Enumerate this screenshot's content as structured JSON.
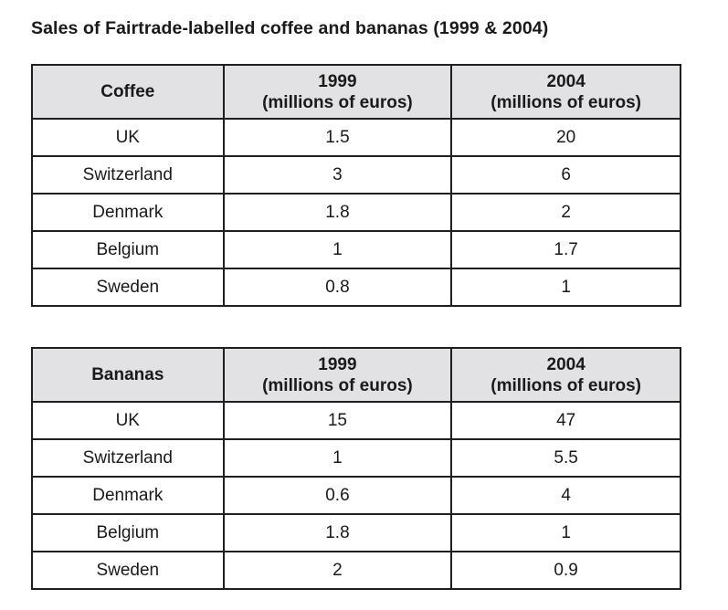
{
  "chart_data": [
    {
      "type": "table",
      "title": "Sales of Fairtrade-labelled coffee and bananas (1999 & 2004)",
      "product": "Coffee",
      "columns": [
        {
          "year": "1999",
          "unit": "(millions of euros)"
        },
        {
          "year": "2004",
          "unit": "(millions of euros)"
        }
      ],
      "rows": [
        {
          "country": "UK",
          "v1999": "1.5",
          "v2004": "20"
        },
        {
          "country": "Switzerland",
          "v1999": "3",
          "v2004": "6"
        },
        {
          "country": "Denmark",
          "v1999": "1.8",
          "v2004": "2"
        },
        {
          "country": "Belgium",
          "v1999": "1",
          "v2004": "1.7"
        },
        {
          "country": "Sweden",
          "v1999": "0.8",
          "v2004": "1"
        }
      ]
    },
    {
      "type": "table",
      "product": "Bananas",
      "columns": [
        {
          "year": "1999",
          "unit": "(millions of euros)"
        },
        {
          "year": "2004",
          "unit": "(millions of euros)"
        }
      ],
      "rows": [
        {
          "country": "UK",
          "v1999": "15",
          "v2004": "47"
        },
        {
          "country": "Switzerland",
          "v1999": "1",
          "v2004": "5.5"
        },
        {
          "country": "Denmark",
          "v1999": "0.6",
          "v2004": "4"
        },
        {
          "country": "Belgium",
          "v1999": "1.8",
          "v2004": "1"
        },
        {
          "country": "Sweden",
          "v1999": "2",
          "v2004": "0.9"
        }
      ]
    }
  ],
  "colors": {
    "header_background": "#e2e2e4",
    "border": "#1e1e1e",
    "text": "#1a1a1a"
  }
}
